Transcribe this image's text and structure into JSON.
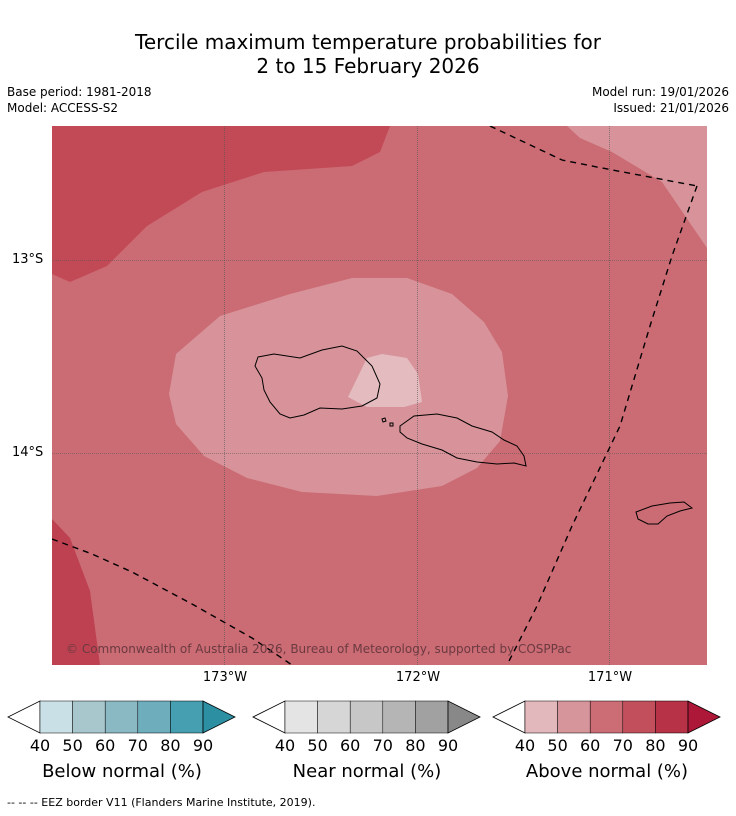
{
  "title": {
    "line1": "Tercile maximum temperature probabilities for",
    "line2": "2 to 15 February 2026"
  },
  "meta": {
    "base_period": "Base period: 1981-2018",
    "model": "Model: ACCESS-S2",
    "model_run": "Model run: 19/01/2026",
    "issued": "Issued: 21/01/2026"
  },
  "map": {
    "lat_labels": [
      "13°S",
      "14°S"
    ],
    "lon_labels": [
      "173°W",
      "172°W",
      "171°W"
    ],
    "copyright": "© Commonwealth of Australia 2026, Bureau of Meteorology, supported by COSPPac",
    "colors": {
      "above_50": "#d79399",
      "above_40": "#e4bcc0",
      "above_60": "#cb6b74",
      "above_70": "#c24a56",
      "above_70_dark": "#bd4150"
    }
  },
  "legends": [
    {
      "title": "Below normal (%)",
      "ticks": [
        "40",
        "50",
        "60",
        "70",
        "80",
        "90"
      ],
      "colors": [
        "#ffffff",
        "#c9e0e6",
        "#a8c7cc",
        "#8ab8c3",
        "#6eaebc",
        "#459fb0",
        "#2c8fa2"
      ]
    },
    {
      "title": "Near normal (%)",
      "ticks": [
        "40",
        "50",
        "60",
        "70",
        "80",
        "90"
      ],
      "colors": [
        "#ffffff",
        "#e4e4e4",
        "#d6d6d6",
        "#c7c7c7",
        "#b5b5b5",
        "#a1a1a1",
        "#888888"
      ]
    },
    {
      "title": "Above normal (%)",
      "ticks": [
        "40",
        "50",
        "60",
        "70",
        "80",
        "90"
      ],
      "colors": [
        "#ffffff",
        "#e2b8bc",
        "#d6959b",
        "#cc6d76",
        "#c1505c",
        "#b73246",
        "#ad1838"
      ]
    }
  ],
  "footer": "--  --  -- EEZ border V11 (Flanders Marine Institute, 2019)."
}
